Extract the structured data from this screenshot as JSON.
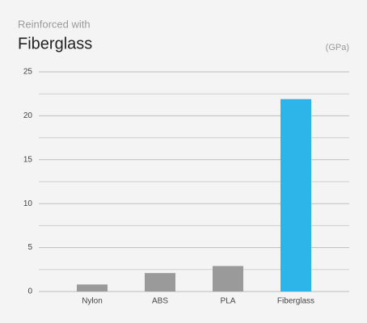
{
  "chart_data": {
    "type": "bar",
    "subtitle": "Reinforced with",
    "title": "Fiberglass",
    "unit_label": "(GPa)",
    "categories": [
      "Nylon",
      "ABS",
      "PLA",
      "Fiberglass"
    ],
    "values": [
      0.8,
      2.1,
      2.9,
      21.9
    ],
    "colors": [
      "#9a9a9a",
      "#9a9a9a",
      "#9a9a9a",
      "#2db5ea"
    ],
    "ylim": [
      0,
      25
    ],
    "yticks": [
      0,
      5,
      10,
      15,
      20,
      25
    ],
    "minor_yticks": [
      2.5,
      7.5,
      12.5,
      17.5,
      22.5
    ],
    "grid": true
  }
}
